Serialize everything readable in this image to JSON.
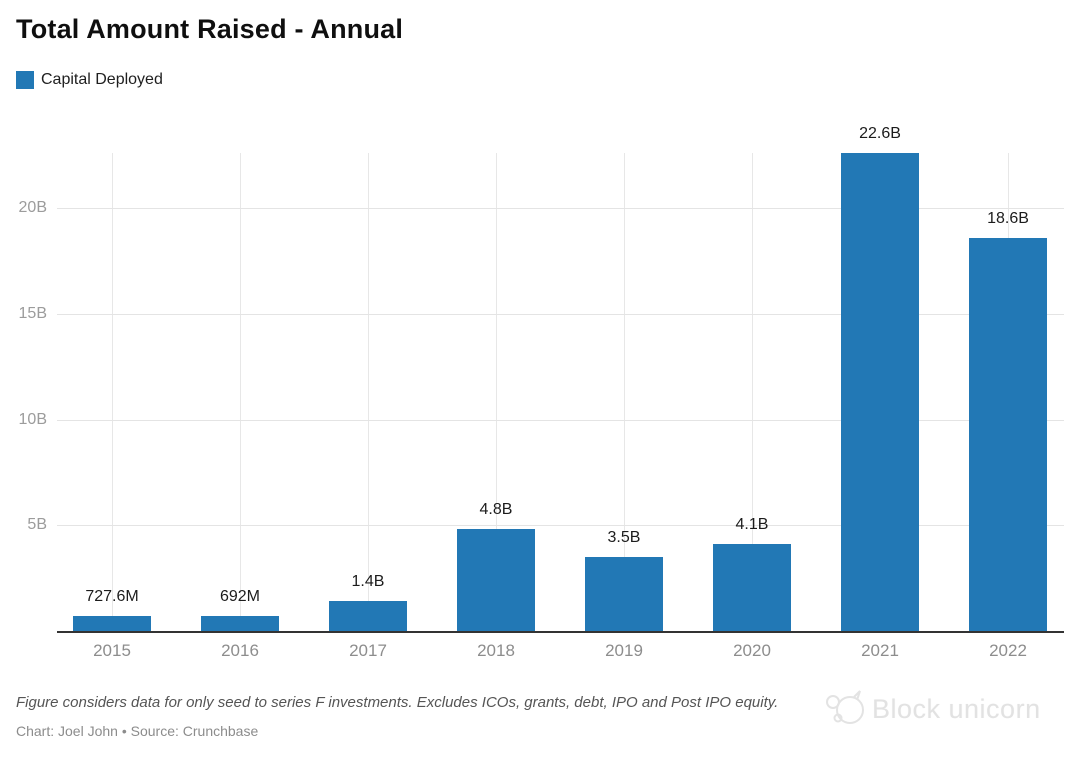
{
  "header": {
    "title": "Total Amount Raised - Annual"
  },
  "legend": {
    "label": "Capital Deployed",
    "swatch_color": "#2278b5"
  },
  "chart_data": {
    "type": "bar",
    "title": "Total Amount Raised - Annual",
    "series_name": "Capital Deployed",
    "categories": [
      "2015",
      "2016",
      "2017",
      "2018",
      "2019",
      "2020",
      "2021",
      "2022"
    ],
    "values": [
      0.7276,
      0.692,
      1.4,
      4.8,
      3.5,
      4.1,
      22.6,
      18.6
    ],
    "value_labels": [
      "727.6M",
      "692M",
      "1.4B",
      "4.8B",
      "3.5B",
      "4.1B",
      "22.6B",
      "18.6B"
    ],
    "unit": "B",
    "ylim": [
      0,
      22.6
    ],
    "yticks": [
      {
        "value": 5,
        "label": "5B"
      },
      {
        "value": 10,
        "label": "10B"
      },
      {
        "value": 15,
        "label": "15B"
      },
      {
        "value": 20,
        "label": "20B"
      }
    ],
    "grid": true,
    "legend_position": "top-left",
    "bar_color": "#2278b5"
  },
  "footer": {
    "note": "Figure considers data for only seed to series F investments. Excludes ICOs, grants, debt, IPO and Post IPO equity.",
    "credit": "Chart: Joel John • Source: Crunchbase"
  },
  "watermark": {
    "text": "Block unicorn"
  }
}
